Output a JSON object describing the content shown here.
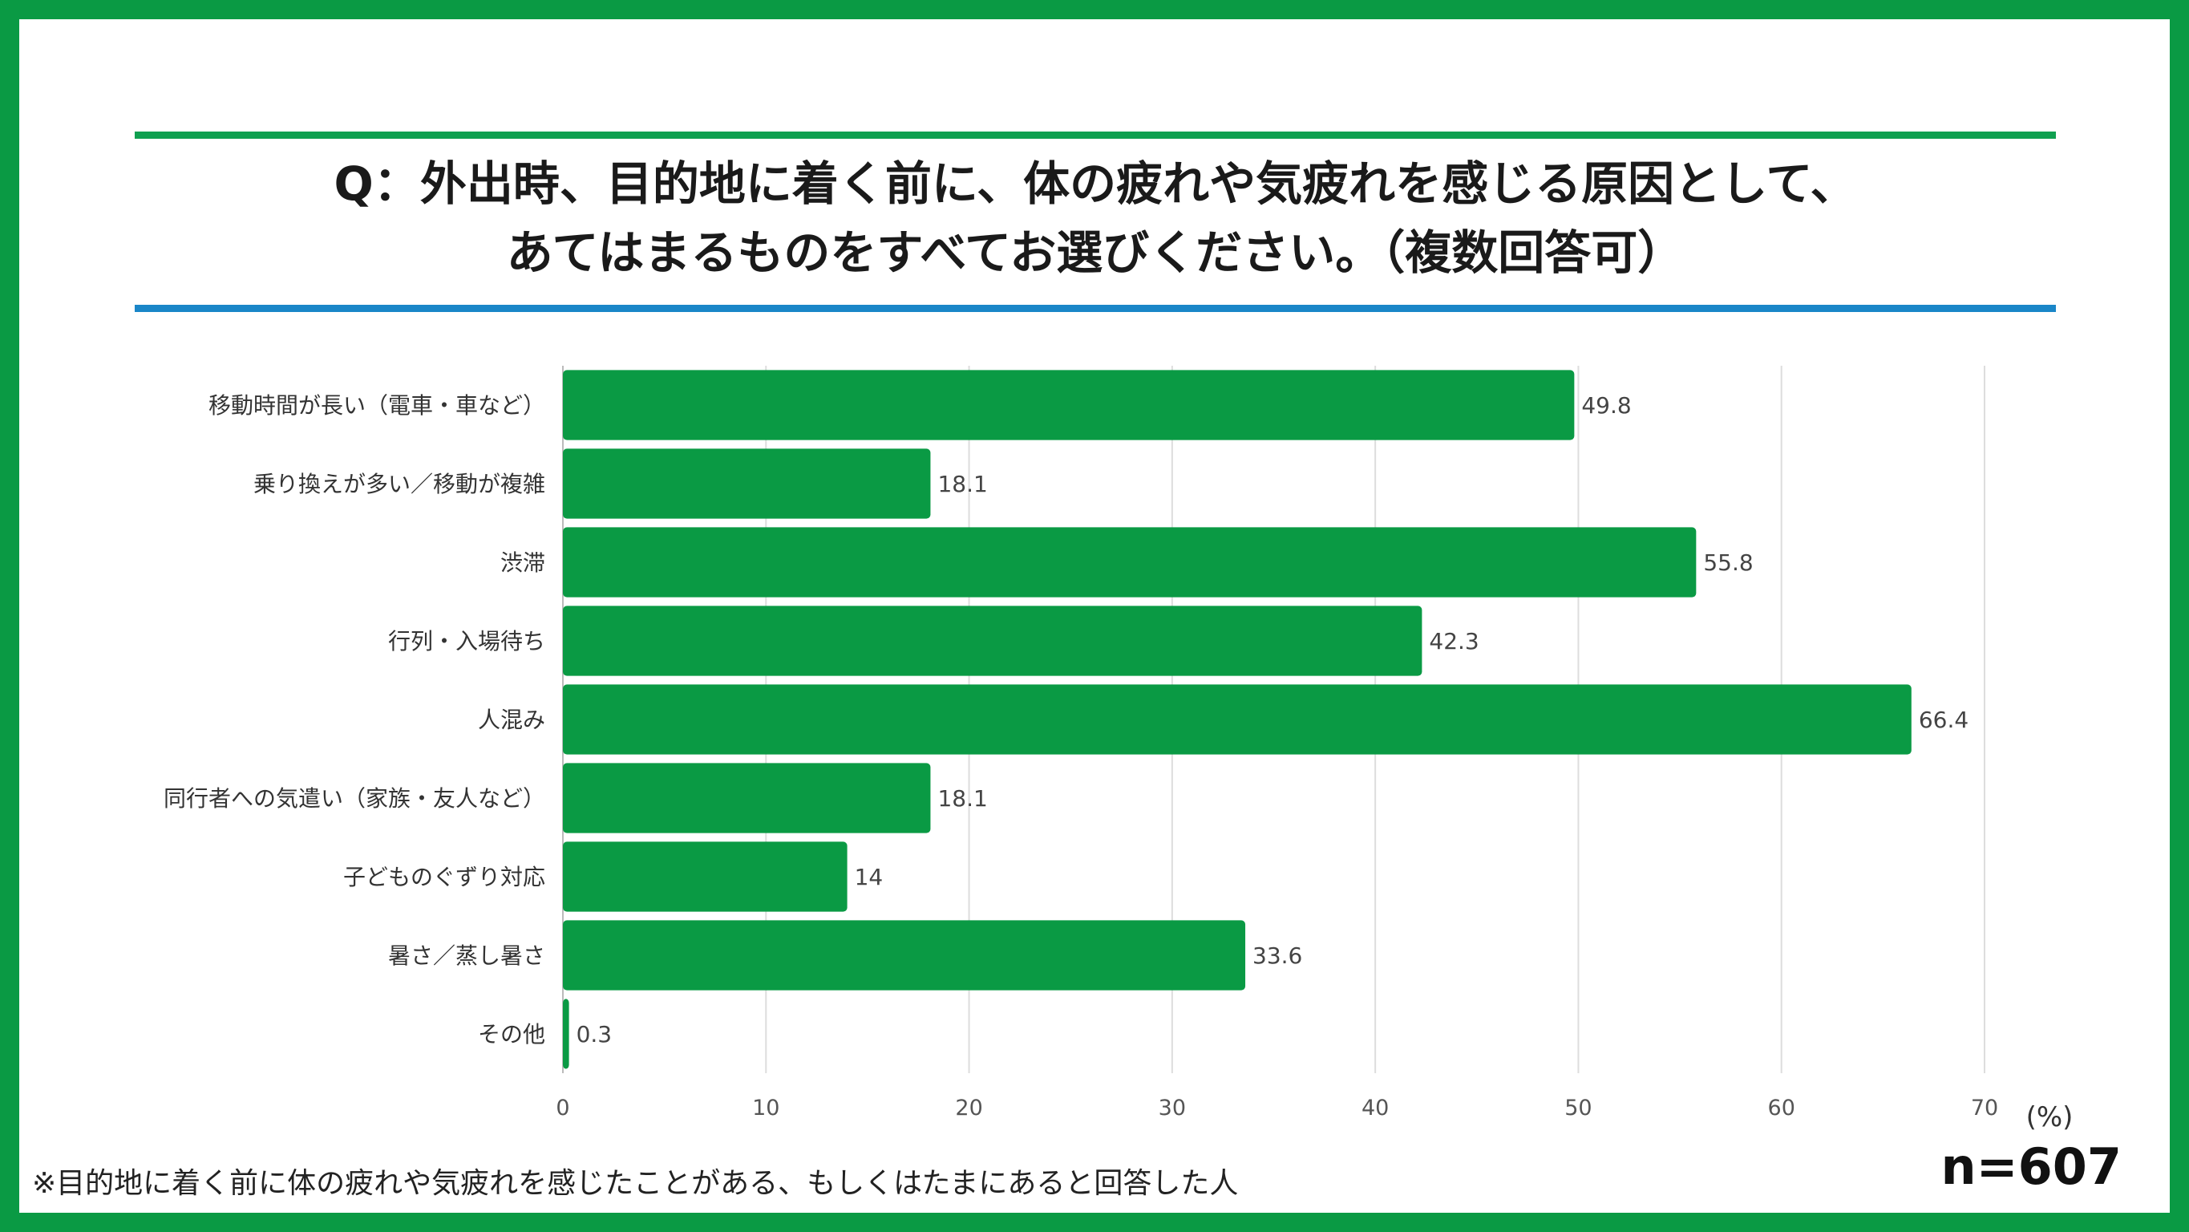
{
  "title_lines": [
    "Q：外出時、目的地に着く前に、体の疲れや気疲れを感じる原因として、",
    "あてはまるものをすべてお選びください。（複数回答可）"
  ],
  "footnote": "※目的地に着く前に体の疲れや気疲れを感じたことがある、もしくはたまにあると回答した人",
  "sample_size": "n=607",
  "colors": {
    "frame": "#0a9a44",
    "bar": "#0a9a44",
    "rule_top": "#10a050",
    "rule_bottom": "#1a86c8"
  },
  "chart_data": {
    "type": "bar",
    "orientation": "horizontal",
    "categories": [
      "移動時間が長い（電車・車など）",
      "乗り換えが多い／移動が複雑",
      "渋滞",
      "行列・入場待ち",
      "人混み",
      "同行者への気遣い（家族・友人など）",
      "子どものぐずり対応",
      "暑さ／蒸し暑さ",
      "その他"
    ],
    "values": [
      49.8,
      18.1,
      55.8,
      42.3,
      66.4,
      18.1,
      14,
      33.6,
      0.3
    ],
    "value_labels": [
      "49.8",
      "18.1",
      "55.8",
      "42.3",
      "66.4",
      "18.1",
      "14",
      "33.6",
      "0.3"
    ],
    "xlim": [
      0,
      70
    ],
    "xticks": [
      "0",
      "10",
      "20",
      "30",
      "40",
      "50",
      "60",
      "70"
    ],
    "unit_label": "(%)",
    "grid": true
  }
}
